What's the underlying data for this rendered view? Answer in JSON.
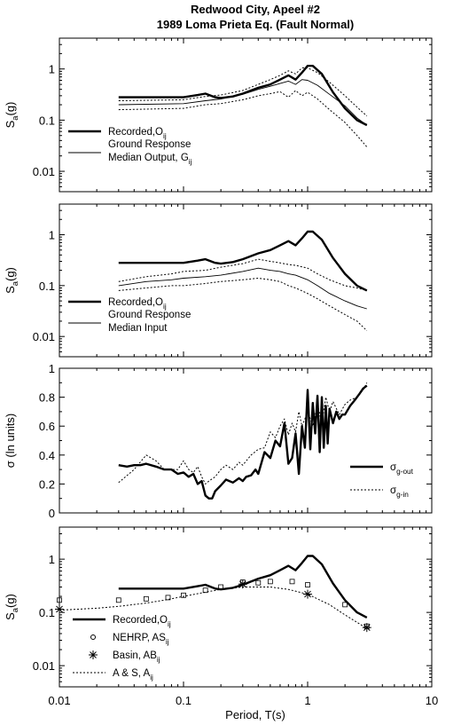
{
  "title": {
    "line1": "Redwood City, Apeel #2",
    "line2": "1989 Loma Prieta Eq. (Fault Normal)"
  },
  "x_axis": {
    "label": "Period, T(s)",
    "scale": "log",
    "range": [
      0.01,
      10
    ],
    "ticks": [
      0.01,
      0.1,
      1,
      10
    ],
    "tick_labels": [
      "0.01",
      "0.1",
      "1",
      "10"
    ]
  },
  "chart_data": [
    {
      "type": "line",
      "panel": "a",
      "ylabel_main": "S",
      "ylabel_sub": "a",
      "ylabel_tail": "(g)",
      "yscale": "log",
      "ylim": [
        0.004,
        4
      ],
      "yticks": [
        0.01,
        0.1,
        1
      ],
      "ytick_labels": [
        "0.01",
        "0.1",
        "1"
      ],
      "series": [
        {
          "id": "recorded",
          "style": "thick",
          "x": [
            0.03,
            0.1,
            0.13,
            0.15,
            0.18,
            0.2,
            0.25,
            0.3,
            0.4,
            0.5,
            0.6,
            0.7,
            0.8,
            0.9,
            1.0,
            1.1,
            1.3,
            1.6,
            2.0,
            2.5,
            3.0
          ],
          "y": [
            0.28,
            0.28,
            0.31,
            0.33,
            0.28,
            0.27,
            0.29,
            0.33,
            0.43,
            0.5,
            0.62,
            0.75,
            0.62,
            0.85,
            1.15,
            1.15,
            0.8,
            0.35,
            0.17,
            0.1,
            0.08
          ]
        },
        {
          "id": "median",
          "style": "thin",
          "x": [
            0.03,
            0.1,
            0.15,
            0.2,
            0.3,
            0.4,
            0.5,
            0.6,
            0.7,
            0.8,
            0.9,
            1.0,
            1.2,
            1.5,
            2.0,
            2.5,
            3.0
          ],
          "y": [
            0.2,
            0.21,
            0.24,
            0.26,
            0.32,
            0.4,
            0.46,
            0.52,
            0.58,
            0.5,
            0.62,
            0.6,
            0.48,
            0.32,
            0.19,
            0.11,
            0.08
          ]
        },
        {
          "id": "upper",
          "style": "dotted",
          "x": [
            0.03,
            0.1,
            0.15,
            0.2,
            0.3,
            0.4,
            0.5,
            0.6,
            0.7,
            0.8,
            0.9,
            1.0,
            1.2,
            1.5,
            2.0,
            2.5,
            3.0
          ],
          "y": [
            0.24,
            0.25,
            0.29,
            0.31,
            0.38,
            0.5,
            0.62,
            0.75,
            0.92,
            0.8,
            1.05,
            1.05,
            0.85,
            0.55,
            0.3,
            0.18,
            0.12
          ]
        },
        {
          "id": "lower",
          "style": "dotted",
          "x": [
            0.03,
            0.1,
            0.15,
            0.2,
            0.3,
            0.4,
            0.5,
            0.6,
            0.7,
            0.8,
            0.9,
            1.0,
            1.2,
            1.5,
            2.0,
            2.5,
            3.0
          ],
          "y": [
            0.16,
            0.17,
            0.2,
            0.21,
            0.25,
            0.3,
            0.33,
            0.36,
            0.28,
            0.38,
            0.3,
            0.35,
            0.26,
            0.16,
            0.09,
            0.05,
            0.03
          ]
        }
      ],
      "legend": [
        {
          "style": "thick",
          "label": "Recorded,O",
          "sub": "ij"
        },
        {
          "style": "thin",
          "label": "Ground Response",
          "label2": "Median Output, G",
          "sub": "ij"
        }
      ]
    },
    {
      "type": "line",
      "panel": "b",
      "ylabel_main": "S",
      "ylabel_sub": "a",
      "ylabel_tail": "(g)",
      "yscale": "log",
      "ylim": [
        0.004,
        4
      ],
      "yticks": [
        0.01,
        0.1,
        1
      ],
      "ytick_labels": [
        "0.01",
        "0.1",
        "1"
      ],
      "series": [
        {
          "id": "recorded",
          "style": "thick",
          "x": [
            0.03,
            0.1,
            0.13,
            0.15,
            0.18,
            0.2,
            0.25,
            0.3,
            0.4,
            0.5,
            0.6,
            0.7,
            0.8,
            0.9,
            1.0,
            1.1,
            1.3,
            1.6,
            2.0,
            2.5,
            3.0
          ],
          "y": [
            0.28,
            0.28,
            0.31,
            0.33,
            0.28,
            0.27,
            0.29,
            0.33,
            0.43,
            0.5,
            0.62,
            0.75,
            0.62,
            0.85,
            1.15,
            1.15,
            0.8,
            0.35,
            0.17,
            0.1,
            0.08
          ]
        },
        {
          "id": "median",
          "style": "thin",
          "x": [
            0.03,
            0.05,
            0.08,
            0.1,
            0.15,
            0.2,
            0.3,
            0.4,
            0.5,
            0.6,
            0.7,
            0.8,
            1.0,
            1.2,
            1.5,
            2.0,
            2.5,
            3.0
          ],
          "y": [
            0.1,
            0.12,
            0.13,
            0.14,
            0.15,
            0.16,
            0.19,
            0.22,
            0.2,
            0.19,
            0.17,
            0.16,
            0.13,
            0.1,
            0.07,
            0.05,
            0.04,
            0.035
          ]
        },
        {
          "id": "upper",
          "style": "dotted",
          "x": [
            0.03,
            0.05,
            0.08,
            0.1,
            0.15,
            0.2,
            0.3,
            0.4,
            0.5,
            0.6,
            0.7,
            0.8,
            1.0,
            1.2,
            1.5,
            2.0,
            2.5,
            3.0
          ],
          "y": [
            0.12,
            0.15,
            0.17,
            0.19,
            0.2,
            0.23,
            0.27,
            0.33,
            0.3,
            0.28,
            0.26,
            0.25,
            0.22,
            0.17,
            0.13,
            0.1,
            0.09,
            0.08
          ]
        },
        {
          "id": "lower",
          "style": "dotted",
          "x": [
            0.03,
            0.05,
            0.08,
            0.1,
            0.15,
            0.2,
            0.3,
            0.4,
            0.5,
            0.6,
            0.7,
            0.8,
            1.0,
            1.2,
            1.5,
            2.0,
            2.5,
            3.0
          ],
          "y": [
            0.08,
            0.09,
            0.1,
            0.1,
            0.11,
            0.12,
            0.13,
            0.14,
            0.13,
            0.12,
            0.1,
            0.09,
            0.07,
            0.055,
            0.04,
            0.027,
            0.02,
            0.013
          ]
        }
      ],
      "legend": [
        {
          "style": "thick",
          "label": "Recorded,O",
          "sub": "ij"
        },
        {
          "style": "thin",
          "label": "Ground Response",
          "label2": "Median Input",
          "sub": ""
        }
      ]
    },
    {
      "type": "line",
      "panel": "c",
      "ylabel_main": "σ (ln units)",
      "yscale": "linear",
      "ylim": [
        0,
        1
      ],
      "yticks": [
        0,
        0.2,
        0.4,
        0.6,
        0.8,
        1
      ],
      "ytick_labels": [
        "0",
        "0.2",
        "0.4",
        "0.6",
        "0.8",
        "1"
      ],
      "series": [
        {
          "id": "sigma_out",
          "style": "thick",
          "x": [
            0.03,
            0.035,
            0.04,
            0.045,
            0.05,
            0.06,
            0.07,
            0.08,
            0.09,
            0.1,
            0.11,
            0.12,
            0.13,
            0.14,
            0.15,
            0.16,
            0.17,
            0.18,
            0.2,
            0.22,
            0.25,
            0.28,
            0.3,
            0.32,
            0.35,
            0.38,
            0.4,
            0.45,
            0.5,
            0.55,
            0.6,
            0.65,
            0.7,
            0.75,
            0.8,
            0.85,
            0.9,
            0.95,
            1.0,
            1.05,
            1.1,
            1.15,
            1.2,
            1.25,
            1.3,
            1.35,
            1.4,
            1.45,
            1.5,
            1.6,
            1.7,
            1.8,
            1.9,
            2.0,
            2.2,
            2.4,
            2.6,
            2.8,
            3.0
          ],
          "y": [
            0.33,
            0.32,
            0.33,
            0.33,
            0.34,
            0.32,
            0.3,
            0.3,
            0.27,
            0.28,
            0.25,
            0.27,
            0.2,
            0.22,
            0.12,
            0.1,
            0.1,
            0.15,
            0.19,
            0.23,
            0.21,
            0.24,
            0.22,
            0.25,
            0.26,
            0.3,
            0.27,
            0.42,
            0.38,
            0.5,
            0.46,
            0.62,
            0.34,
            0.38,
            0.55,
            0.27,
            0.6,
            0.45,
            0.85,
            0.44,
            0.76,
            0.55,
            0.81,
            0.42,
            0.8,
            0.45,
            0.74,
            0.48,
            0.72,
            0.62,
            0.7,
            0.65,
            0.68,
            0.68,
            0.74,
            0.78,
            0.82,
            0.86,
            0.88
          ]
        },
        {
          "id": "sigma_in",
          "style": "dotted",
          "x": [
            0.03,
            0.04,
            0.05,
            0.06,
            0.07,
            0.08,
            0.09,
            0.1,
            0.11,
            0.12,
            0.13,
            0.14,
            0.15,
            0.16,
            0.18,
            0.2,
            0.22,
            0.25,
            0.28,
            0.3,
            0.35,
            0.4,
            0.45,
            0.5,
            0.55,
            0.6,
            0.65,
            0.7,
            0.75,
            0.8,
            0.85,
            0.9,
            0.95,
            1.0,
            1.1,
            1.2,
            1.3,
            1.4,
            1.5,
            1.6,
            1.8,
            2.0,
            2.2,
            2.5,
            2.8,
            3.0
          ],
          "y": [
            0.21,
            0.3,
            0.4,
            0.36,
            0.3,
            0.3,
            0.3,
            0.36,
            0.3,
            0.28,
            0.32,
            0.25,
            0.2,
            0.22,
            0.25,
            0.3,
            0.33,
            0.3,
            0.35,
            0.33,
            0.4,
            0.44,
            0.45,
            0.56,
            0.52,
            0.6,
            0.65,
            0.54,
            0.62,
            0.56,
            0.7,
            0.6,
            0.65,
            0.7,
            0.6,
            0.75,
            0.62,
            0.8,
            0.7,
            0.77,
            0.68,
            0.75,
            0.78,
            0.8,
            0.85,
            0.9
          ]
        }
      ],
      "legend": [
        {
          "style": "thick",
          "label": "σ",
          "sub": "g-out"
        },
        {
          "style": "dotted",
          "label": "σ",
          "sub": "g-in"
        }
      ]
    },
    {
      "type": "line",
      "panel": "d",
      "ylabel_main": "S",
      "ylabel_sub": "a",
      "ylabel_tail": "(g)",
      "yscale": "log",
      "ylim": [
        0.004,
        4
      ],
      "yticks": [
        0.01,
        0.1,
        1
      ],
      "ytick_labels": [
        "0.01",
        "0.1",
        "1"
      ],
      "series": [
        {
          "id": "recorded",
          "style": "thick",
          "x": [
            0.03,
            0.1,
            0.13,
            0.15,
            0.18,
            0.2,
            0.25,
            0.3,
            0.4,
            0.5,
            0.6,
            0.7,
            0.8,
            0.9,
            1.0,
            1.1,
            1.3,
            1.6,
            2.0,
            2.5,
            3.0
          ],
          "y": [
            0.28,
            0.28,
            0.31,
            0.33,
            0.28,
            0.27,
            0.29,
            0.33,
            0.43,
            0.5,
            0.62,
            0.75,
            0.62,
            0.85,
            1.15,
            1.15,
            0.8,
            0.35,
            0.17,
            0.1,
            0.08
          ]
        },
        {
          "id": "as_model",
          "style": "dotted",
          "x": [
            0.01,
            0.02,
            0.03,
            0.05,
            0.07,
            0.1,
            0.15,
            0.2,
            0.3,
            0.4,
            0.5,
            0.7,
            1.0,
            1.5,
            2.0,
            3.0
          ],
          "y": [
            0.11,
            0.12,
            0.13,
            0.15,
            0.17,
            0.2,
            0.24,
            0.27,
            0.3,
            0.3,
            0.3,
            0.27,
            0.22,
            0.14,
            0.09,
            0.05
          ]
        },
        {
          "id": "nehrp",
          "style": "squares",
          "x": [
            0.01,
            0.03,
            0.05,
            0.075,
            0.1,
            0.15,
            0.2,
            0.3,
            0.4,
            0.5,
            0.75,
            1.0,
            2.0,
            3.0
          ],
          "y": [
            0.17,
            0.17,
            0.18,
            0.19,
            0.21,
            0.26,
            0.3,
            0.37,
            0.36,
            0.38,
            0.38,
            0.33,
            0.14,
            0.055
          ]
        },
        {
          "id": "basin",
          "style": "stars",
          "x": [
            0.01,
            0.3,
            1.0,
            3.0
          ],
          "y": [
            0.115,
            0.34,
            0.22,
            0.052
          ]
        }
      ],
      "legend": [
        {
          "style": "thick",
          "label": "Recorded,O",
          "sub": "ij"
        },
        {
          "style": "circle",
          "label": "NEHRP, AS",
          "sub": "ij"
        },
        {
          "style": "star",
          "label": "Basin, AB",
          "sub": "ij"
        },
        {
          "style": "dotted",
          "label": "A & S, A",
          "sub": "ij"
        }
      ]
    }
  ]
}
